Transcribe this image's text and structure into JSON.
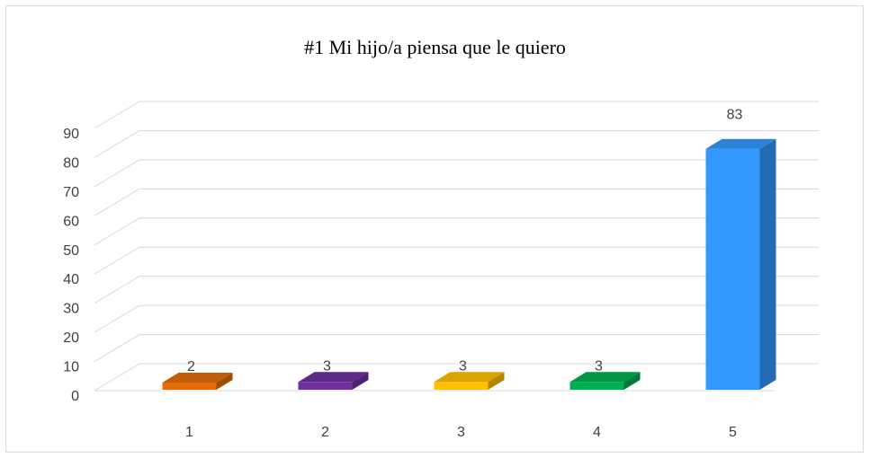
{
  "chart_data": {
    "type": "bar",
    "title": "#1 Mi hijo/a piensa que le  quiero",
    "categories": [
      "1",
      "2",
      "3",
      "4",
      "5"
    ],
    "values": [
      2,
      3,
      3,
      3,
      83
    ],
    "ylim": [
      0,
      90
    ],
    "yticks": [
      0,
      10,
      20,
      30,
      40,
      50,
      60,
      70,
      80,
      90
    ],
    "grid": true,
    "legend": "none",
    "style": "3d-column",
    "colors": [
      "#E46C0A",
      "#7030A0",
      "#FFC000",
      "#00B050",
      "#3399FF"
    ]
  }
}
